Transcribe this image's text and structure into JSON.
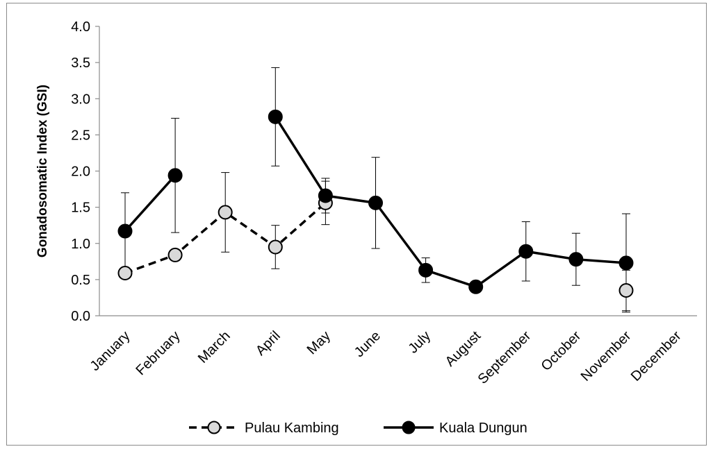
{
  "chart_data": {
    "type": "line",
    "ylabel": "Gonadosomatic Index (GSI)",
    "xlabel": "",
    "ylim": [
      0,
      4.0
    ],
    "y_ticks": [
      "0.0",
      "0.5",
      "1.0",
      "1.5",
      "2.0",
      "2.5",
      "3.0",
      "3.5",
      "4.0"
    ],
    "categories": [
      "January",
      "February",
      "March",
      "April",
      "May",
      "June",
      "July",
      "August",
      "September",
      "October",
      "November",
      "December"
    ],
    "grid": false,
    "legend_position": "bottom",
    "series": [
      {
        "name": "Pulau Kambing",
        "line_style": "dashed",
        "marker_color": "#d9d9d9",
        "values": [
          0.59,
          0.84,
          1.43,
          0.95,
          1.56,
          null,
          null,
          null,
          null,
          null,
          0.35,
          null
        ],
        "error": [
          null,
          null,
          0.55,
          0.3,
          0.3,
          null,
          null,
          null,
          null,
          null,
          0.28,
          null
        ]
      },
      {
        "name": "Kuala Dungun",
        "line_style": "solid",
        "marker_color": "#000000",
        "values": [
          1.17,
          1.94,
          null,
          2.75,
          1.66,
          1.56,
          0.63,
          0.4,
          0.89,
          0.78,
          0.73,
          null
        ],
        "error": [
          0.53,
          0.79,
          null,
          0.68,
          0.24,
          0.63,
          0.17,
          null,
          0.41,
          0.36,
          0.68,
          null
        ]
      }
    ]
  }
}
